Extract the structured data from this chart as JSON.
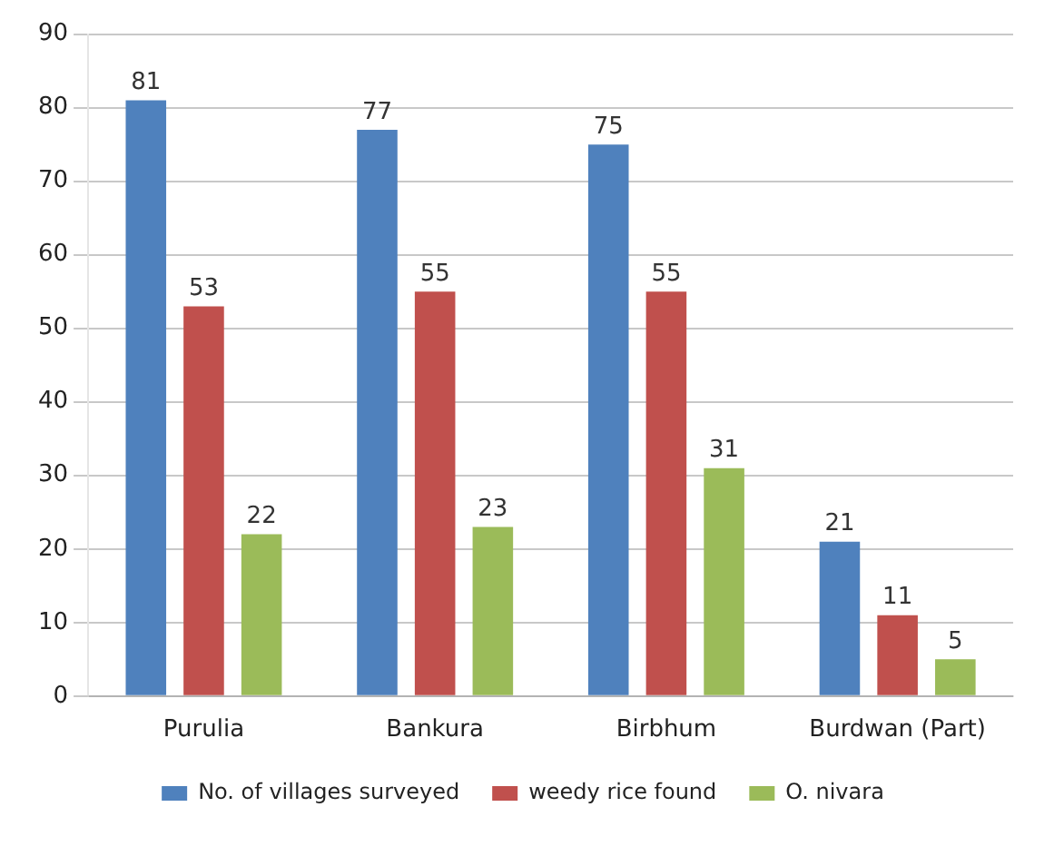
{
  "chart_data": {
    "type": "bar",
    "categories": [
      "Purulia",
      "Bankura",
      "Birbhum",
      "Burdwan (Part)"
    ],
    "series": [
      {
        "name": "No. of villages surveyed",
        "color": "#4f81bd",
        "values": [
          81,
          77,
          75,
          21
        ]
      },
      {
        "name": "weedy rice found",
        "color": "#c0504d",
        "values": [
          53,
          55,
          55,
          11
        ]
      },
      {
        "name": "O. nivara",
        "color": "#9bbb59",
        "values": [
          22,
          23,
          31,
          5
        ]
      }
    ],
    "ylim": [
      0,
      90
    ],
    "yticks": [
      0,
      10,
      20,
      30,
      40,
      50,
      60,
      70,
      80,
      90
    ],
    "grid": "y",
    "legend": "bottom",
    "data_labels": true
  }
}
